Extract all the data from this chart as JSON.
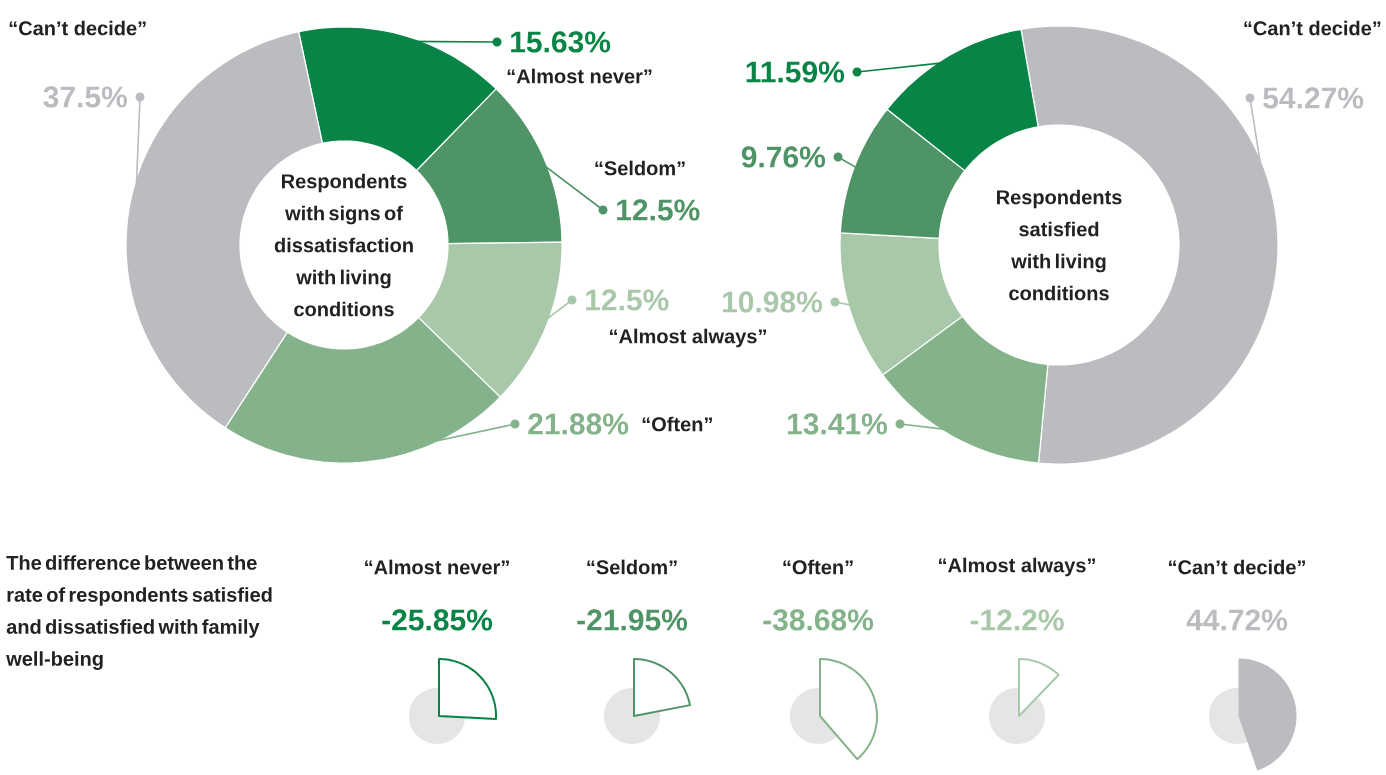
{
  "chart_data": [
    {
      "type": "donut",
      "title": "Respondents with signs of dissatisfaction with living conditions",
      "categories": [
        "“Almost never”",
        "“Seldom”",
        "“Almost always”",
        "“Often”",
        "“Can’t decide”"
      ],
      "values": [
        15.63,
        12.5,
        12.5,
        21.88,
        37.5
      ],
      "value_labels": [
        "15.63%",
        "12.5%",
        "12.5%",
        "21.88%",
        "37.5%"
      ],
      "colors": [
        "#088446",
        "#4f9467",
        "#a9c8aa",
        "#84b38b",
        "#bbbcc0"
      ]
    },
    {
      "type": "donut",
      "title": "Respondents satisfied with living conditions",
      "categories": [
        "“Can’t decide”",
        null,
        null,
        null,
        null
      ],
      "values": [
        54.27,
        13.41,
        10.98,
        9.76,
        11.59
      ],
      "value_labels": [
        "54.27%",
        "13.41%",
        "10.98%",
        "9.76%",
        "11.59%"
      ],
      "colors": [
        "#bbbcc0",
        "#84b38b",
        "#a9c8aa",
        "#4f9467",
        "#088446"
      ]
    },
    {
      "type": "other",
      "title": "The difference between the rate of respondents satisfied and dissatisfied with family well-being",
      "categories": [
        "“Almost never”",
        "“Seldom”",
        "“Often”",
        "“Almost always”",
        "“Can’t decide”"
      ],
      "values": [
        -25.85,
        -21.95,
        -38.68,
        -12.2,
        44.72
      ],
      "value_labels": [
        "-25.85%",
        "-21.95%",
        "-38.68%",
        "-12.2%",
        "44.72%"
      ],
      "colors": [
        "#088446",
        "#4f9467",
        "#84b38b",
        "#a9c8aa",
        "#bbbcc0"
      ]
    }
  ]
}
